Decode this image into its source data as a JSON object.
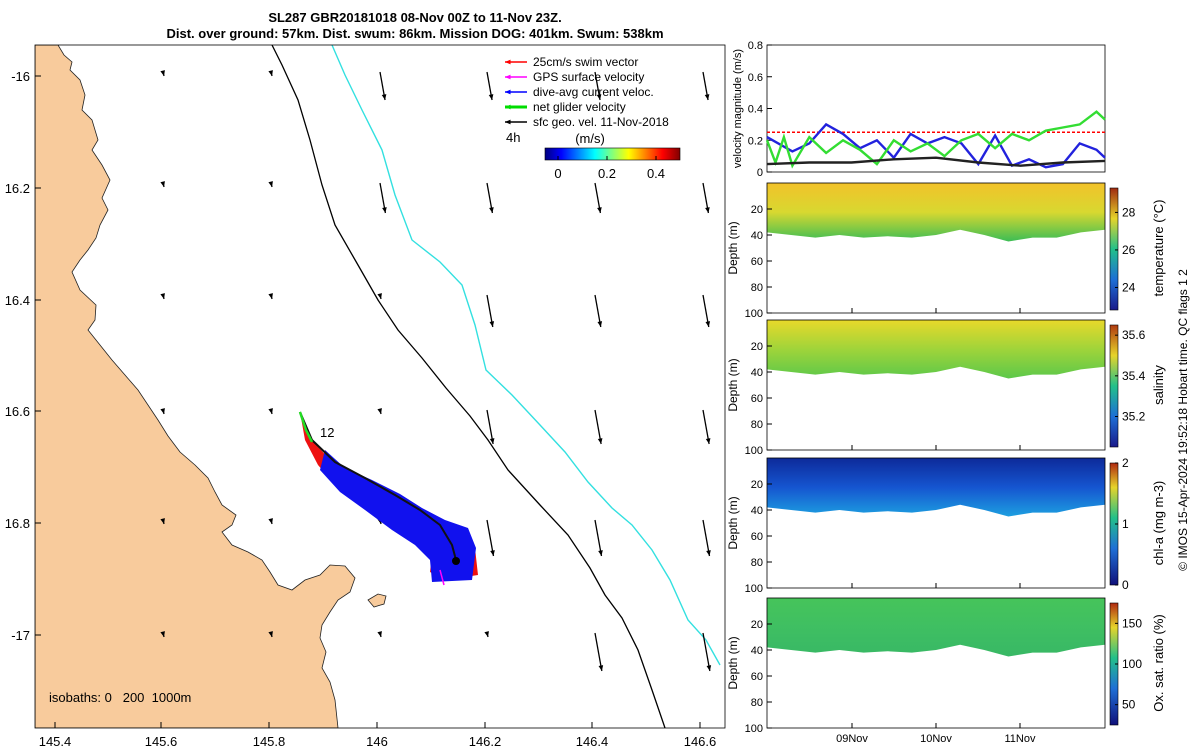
{
  "header": {
    "line1": "SL287 GBR20181018 08-Nov 00Z to 11-Nov 23Z.",
    "line2": "Dist. over ground: 57km. Dist. swum: 86km. Mission DOG: 401km. Swum: 538km"
  },
  "map": {
    "x_ticks": [
      "145.4",
      "145.6",
      "145.8",
      "146",
      "146.2",
      "146.4",
      "146.6"
    ],
    "y_ticks": [
      "-16",
      "16.2",
      "16.4",
      "16.6",
      "16.8",
      "-17"
    ],
    "legend": [
      {
        "label": "25cm/s swim vector",
        "color": "#ff0000"
      },
      {
        "label": "GPS surface velocity",
        "color": "#ff00ff"
      },
      {
        "label": "dive-avg current veloc.",
        "color": "#0000ff"
      },
      {
        "label": "net glider velocity",
        "color": "#00dd00"
      },
      {
        "label": "sfc geo. vel. 11-Nov-2018",
        "color": "#000000"
      }
    ],
    "colorbar_title": "(m/s)",
    "colorbar_ticks": [
      "0",
      "0.2",
      "0.4"
    ],
    "label_4h": "4h",
    "label_12": "12",
    "isobaths_label": "isobaths: 0   200  1000m",
    "colors": {
      "land": "#f8cb9c",
      "isobath_200": "#000000",
      "isobath_1000": "#33e0e0"
    }
  },
  "chart_data": [
    {
      "type": "line",
      "title": "",
      "ylabel": "velocity magnitude (m/s)",
      "ylim": [
        0,
        0.8
      ],
      "y_ticks": [
        "0",
        "0.2",
        "0.4",
        "0.6",
        "0.8"
      ],
      "xlim": [
        0,
        4
      ],
      "series": [
        {
          "name": "swim speed 25cm/s",
          "color": "#ff0000",
          "x": [
            0,
            4
          ],
          "values": [
            0.25,
            0.25
          ]
        },
        {
          "name": "dive-avg current",
          "color": "#2222dd",
          "x": [
            0,
            0.3,
            0.5,
            0.7,
            0.9,
            1.1,
            1.3,
            1.5,
            1.7,
            1.9,
            2.1,
            2.3,
            2.5,
            2.7,
            2.9,
            3.1,
            3.3,
            3.5,
            3.7,
            3.9,
            4.0
          ],
          "values": [
            0.22,
            0.13,
            0.18,
            0.3,
            0.24,
            0.15,
            0.2,
            0.09,
            0.24,
            0.18,
            0.22,
            0.18,
            0.05,
            0.23,
            0.04,
            0.08,
            0.03,
            0.05,
            0.18,
            0.14,
            0.09
          ]
        },
        {
          "name": "net glider velocity",
          "color": "#33dd33",
          "x": [
            0,
            0.1,
            0.2,
            0.3,
            0.5,
            0.7,
            0.9,
            1.1,
            1.3,
            1.5,
            1.7,
            1.9,
            2.1,
            2.3,
            2.5,
            2.7,
            2.9,
            3.1,
            3.3,
            3.5,
            3.7,
            3.9,
            4.0
          ],
          "values": [
            0.2,
            0.06,
            0.22,
            0.04,
            0.22,
            0.12,
            0.2,
            0.14,
            0.05,
            0.2,
            0.13,
            0.18,
            0.1,
            0.2,
            0.24,
            0.15,
            0.24,
            0.2,
            0.26,
            0.28,
            0.3,
            0.38,
            0.33
          ]
        },
        {
          "name": "sfc geo. vel.",
          "color": "#222222",
          "x": [
            0,
            0.5,
            1.0,
            1.5,
            2.0,
            2.5,
            3.0,
            3.5,
            4.0
          ],
          "values": [
            0.05,
            0.06,
            0.06,
            0.08,
            0.09,
            0.06,
            0.04,
            0.06,
            0.07
          ]
        }
      ]
    },
    {
      "type": "heatmap",
      "variable": "temperature",
      "ylabel": "Depth (m)",
      "clabel": "temperature (°C)",
      "depth_range": [
        0,
        100
      ],
      "y_ticks": [
        "20",
        "40",
        "60",
        "80",
        "100"
      ],
      "clim": [
        22.8,
        29.3
      ],
      "c_ticks": [
        "24",
        "26",
        "28"
      ],
      "bottom_depth": [
        38,
        40,
        42,
        40,
        42,
        41,
        42,
        40,
        36,
        40,
        45,
        42,
        42,
        38,
        36
      ],
      "surface_color": "#f2c22a",
      "mid_color": "#d8d830",
      "deep_color": "#3cbd55"
    },
    {
      "type": "heatmap",
      "variable": "salinity",
      "ylabel": "Depth (m)",
      "clabel": "salinity",
      "depth_range": [
        0,
        100
      ],
      "y_ticks": [
        "20",
        "40",
        "60",
        "80",
        "100"
      ],
      "clim": [
        35.05,
        35.65
      ],
      "c_ticks": [
        "35.2",
        "35.4",
        "35.6"
      ],
      "bottom_depth": [
        38,
        40,
        42,
        40,
        42,
        41,
        42,
        40,
        36,
        40,
        45,
        42,
        42,
        38,
        36
      ],
      "surface_color": "#e8d92a",
      "mid_color": "#9fd43a",
      "deep_color": "#5cc84a"
    },
    {
      "type": "heatmap",
      "variable": "chl-a",
      "ylabel": "Depth (m)",
      "clabel": "chl-a (mg m-3)",
      "depth_range": [
        0,
        100
      ],
      "y_ticks": [
        "20",
        "40",
        "60",
        "80",
        "100"
      ],
      "clim": [
        0,
        2
      ],
      "c_ticks": [
        "0",
        "1",
        "2"
      ],
      "bottom_depth": [
        38,
        40,
        42,
        40,
        42,
        41,
        42,
        40,
        36,
        40,
        45,
        42,
        42,
        38,
        36
      ],
      "surface_color": "#0d2a9a",
      "mid_color": "#1555d0",
      "deep_color": "#1d9fe0"
    },
    {
      "type": "heatmap",
      "variable": "oxygen saturation",
      "ylabel": "Depth (m)",
      "clabel": "Ox. sat. ratio (%)",
      "depth_range": [
        0,
        100
      ],
      "y_ticks": [
        "20",
        "40",
        "60",
        "80",
        "100"
      ],
      "clim": [
        25,
        175
      ],
      "c_ticks": [
        "50",
        "100",
        "150"
      ],
      "x_ticks": [
        "09Nov",
        "10Nov",
        "11Nov"
      ],
      "bottom_depth": [
        38,
        40,
        42,
        40,
        42,
        41,
        42,
        40,
        36,
        40,
        45,
        42,
        42,
        38,
        36
      ],
      "surface_color": "#46c45a",
      "mid_color": "#3fbf62",
      "deep_color": "#38b865"
    }
  ],
  "footer": {
    "stamp": "© IMOS 15-Apr-2024 19:52:18 Hobart time. QC flags 1  2"
  }
}
